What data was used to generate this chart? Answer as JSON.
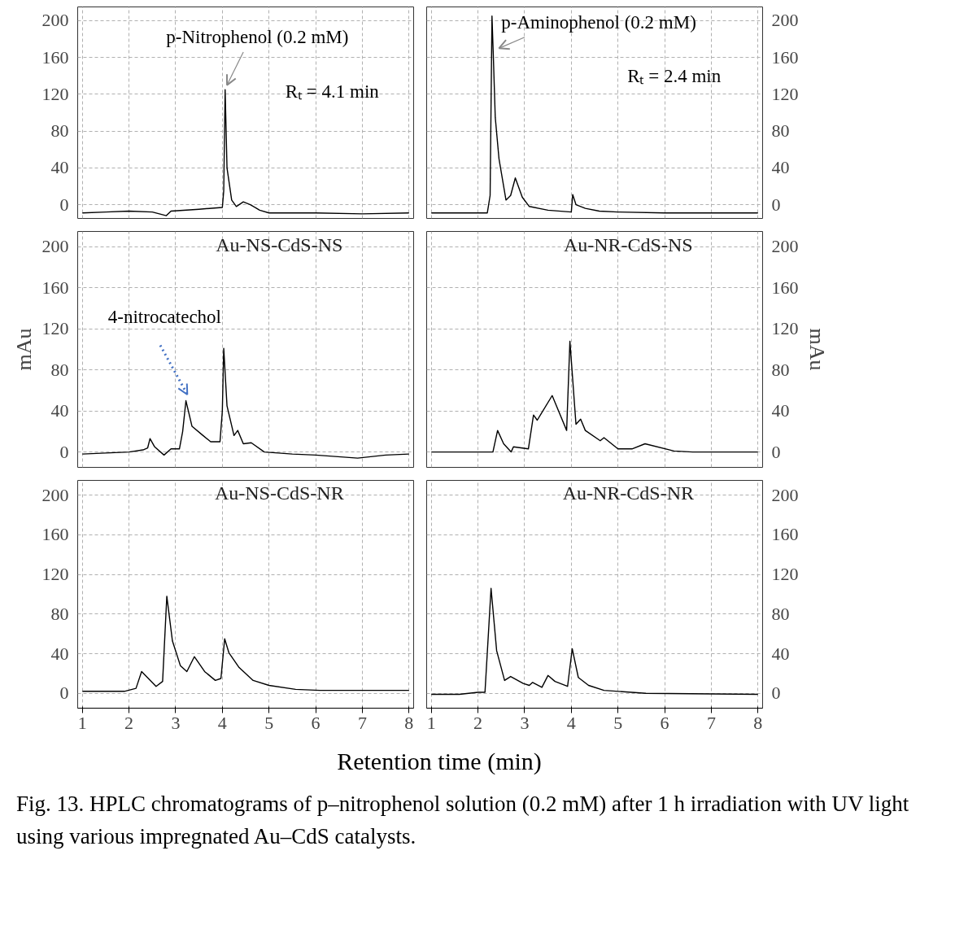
{
  "chart_data": [
    {
      "type": "line",
      "x": [
        1,
        1.5,
        2,
        2.5,
        2.8,
        2.9,
        3.5,
        4.0,
        4.03,
        4.06,
        4.1,
        4.2,
        4.3,
        4.45,
        4.6,
        4.8,
        5.0,
        6,
        7,
        8
      ],
      "series": [
        {
          "color": "#000000",
          "values": [
            -9,
            -8,
            -7,
            -8,
            -12,
            -7,
            -5,
            -3,
            15,
            125,
            40,
            5,
            -2,
            3,
            0,
            -6,
            -9,
            -9,
            -10,
            -9
          ]
        }
      ],
      "xlim": [
        0.9,
        8.1
      ],
      "xticks": [
        1,
        2,
        3,
        4,
        5,
        6,
        7,
        8
      ],
      "ylim": [
        -15,
        215
      ],
      "yticks": [
        0,
        40,
        80,
        120,
        160,
        200
      ],
      "grid": true,
      "tick_labels": "y",
      "annotations": [
        "p-Nitrophenol (0.2 mM)",
        "Rₜ = 4.1 min"
      ]
    },
    {
      "type": "line",
      "x": [
        1,
        1.5,
        2,
        2.2,
        2.26,
        2.3,
        2.33,
        2.37,
        2.45,
        2.6,
        2.7,
        2.8,
        2.95,
        3.1,
        3.5,
        4.0,
        4.03,
        4.1,
        4.3,
        4.6,
        5.0,
        6,
        7,
        8
      ],
      "series": [
        {
          "color": "#000000",
          "axis": "y2",
          "values": [
            -9,
            -9,
            -9,
            -9,
            10,
            205,
            160,
            95,
            50,
            5,
            10,
            29,
            8,
            -2,
            -6,
            -8,
            11,
            0,
            -4,
            -7,
            -8,
            -9,
            -9,
            -9
          ]
        }
      ],
      "xlim": [
        0.9,
        8.1
      ],
      "xticks": [
        1,
        2,
        3,
        4,
        5,
        6,
        7,
        8
      ],
      "y2lim": [
        -15,
        215
      ],
      "y2ticks": [
        0,
        40,
        80,
        120,
        160,
        200
      ],
      "grid": true,
      "tick_labels": "y",
      "annotations": [
        "p-Aminophenol (0.2 mM)",
        "Rₜ = 2.4 min"
      ]
    },
    {
      "type": "line",
      "x": [
        1,
        2,
        2.3,
        2.4,
        2.45,
        2.55,
        2.75,
        2.9,
        3.08,
        3.15,
        3.22,
        3.35,
        3.56,
        3.75,
        3.95,
        4.0,
        4.03,
        4.1,
        4.25,
        4.33,
        4.45,
        4.62,
        4.9,
        5.5,
        6,
        6.9,
        7.5,
        8
      ],
      "series": [
        {
          "color": "#000000",
          "values": [
            -2,
            0,
            2,
            4,
            13,
            5,
            -3,
            3,
            3,
            20,
            50,
            25,
            17,
            10,
            10,
            40,
            101,
            45,
            16,
            21,
            8,
            9,
            0,
            -2,
            -3,
            -6,
            -3,
            -2
          ]
        }
      ],
      "xlim": [
        0.9,
        8.1
      ],
      "xticks": [
        1,
        2,
        3,
        4,
        5,
        6,
        7,
        8
      ],
      "ylim": [
        -15,
        215
      ],
      "yticks": [
        0,
        40,
        80,
        120,
        160,
        200
      ],
      "grid": true,
      "tick_labels": "y",
      "title": "Au-NS-CdS-NS",
      "ylabel": "mAu",
      "annotations": [
        "4-nitrocatechol"
      ]
    },
    {
      "type": "line",
      "x": [
        1,
        2,
        2.32,
        2.42,
        2.55,
        2.71,
        2.76,
        3.08,
        3.19,
        3.27,
        3.59,
        3.9,
        3.97,
        4.1,
        4.2,
        4.3,
        4.62,
        4.7,
        5.0,
        5.3,
        5.58,
        6.2,
        6.6,
        8
      ],
      "series": [
        {
          "color": "#000000",
          "axis": "y2",
          "values": [
            0,
            0,
            0,
            21,
            8,
            0,
            5,
            3,
            36,
            31,
            55,
            21,
            108,
            27,
            32,
            21,
            11,
            14,
            3,
            3,
            8,
            1,
            0,
            0
          ]
        }
      ],
      "xlim": [
        0.9,
        8.1
      ],
      "xticks": [
        1,
        2,
        3,
        4,
        5,
        6,
        7,
        8
      ],
      "y2lim": [
        -15,
        215
      ],
      "y2ticks": [
        0,
        40,
        80,
        120,
        160,
        200
      ],
      "grid": true,
      "tick_labels": "y",
      "title": "Au-NR-CdS-NS",
      "y2label": "mAu"
    },
    {
      "type": "line",
      "x": [
        1,
        1.9,
        2.15,
        2.27,
        2.58,
        2.72,
        2.81,
        2.93,
        3.1,
        3.24,
        3.4,
        3.62,
        3.85,
        3.97,
        4.05,
        4.14,
        4.36,
        4.66,
        5.0,
        5.57,
        6.09,
        8
      ],
      "series": [
        {
          "color": "#000000",
          "values": [
            2,
            2,
            5,
            22,
            7,
            12,
            98,
            53,
            28,
            22,
            37,
            22,
            13,
            15,
            55,
            41,
            26,
            13,
            8,
            4,
            3,
            3
          ]
        }
      ],
      "xlim": [
        0.9,
        8.1
      ],
      "xticks": [
        1,
        2,
        3,
        4,
        5,
        6,
        7,
        8
      ],
      "ylim": [
        -15,
        215
      ],
      "yticks": [
        0,
        40,
        80,
        120,
        160,
        200
      ],
      "grid": true,
      "title": "Au-NS-CdS-NR",
      "xlabel": "Retention time (min)"
    },
    {
      "type": "line",
      "x": [
        1,
        1.6,
        2,
        2.15,
        2.28,
        2.4,
        2.57,
        2.7,
        2.97,
        3.1,
        3.17,
        3.37,
        3.5,
        3.65,
        3.92,
        4.02,
        4.15,
        4.37,
        4.7,
        5.6,
        8
      ],
      "series": [
        {
          "color": "#000000",
          "axis": "y2",
          "values": [
            -1,
            -1,
            1,
            1,
            106,
            43,
            13,
            17,
            10,
            8,
            11,
            6,
            18,
            12,
            7,
            45,
            16,
            8,
            3,
            0,
            -1
          ]
        }
      ],
      "xlim": [
        0.9,
        8.1
      ],
      "xticks": [
        1,
        2,
        3,
        4,
        5,
        6,
        7,
        8
      ],
      "y2lim": [
        -15,
        215
      ],
      "y2ticks": [
        0,
        40,
        80,
        120,
        160,
        200
      ],
      "grid": true,
      "title": "Au-NR-CdS-NR",
      "annotations": [
        "Fig. 13. HPLC chromatograms of p–nitrophenol solution (0.2 mM) after 1 h irradiation with UV light using various impregnated Au–CdS catalysts."
      ]
    }
  ]
}
